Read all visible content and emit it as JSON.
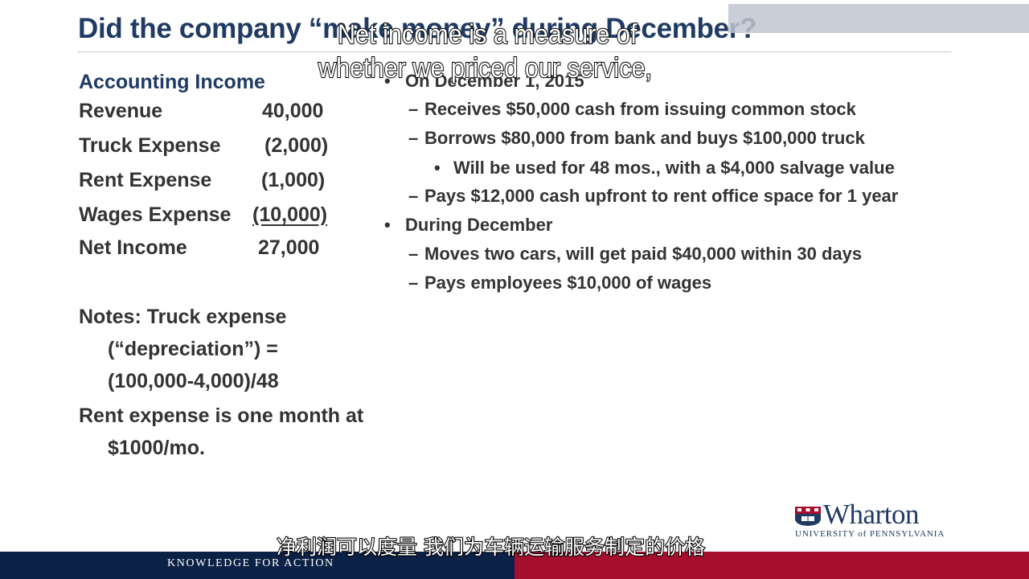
{
  "slide": {
    "title": "Did the company “make money” during December?",
    "accounting": {
      "heading": "Accounting Income",
      "rows": [
        {
          "label": "Revenue",
          "value": "40,000"
        },
        {
          "label": "Truck Expense",
          "value": "(2,000)"
        },
        {
          "label": "Rent Expense",
          "value": "(1,000)"
        },
        {
          "label": "Wages Expense",
          "value": "(10,000)"
        },
        {
          "label": "Net Income",
          "value": "27,000"
        }
      ]
    },
    "notes": [
      "Notes: Truck expense",
      "(“depreciation”) =",
      "(100,000-4,000)/48",
      "Rent expense is one month at",
      "$1000/mo."
    ],
    "bullets": [
      {
        "marker": "•",
        "text": "On December 1, 2015"
      },
      {
        "marker": "–",
        "text": "Receives $50,000 cash from issuing common stock"
      },
      {
        "marker": "–",
        "text": "Borrows $80,000 from bank and buys $100,000 truck"
      },
      {
        "marker": "•",
        "text": "Will be used for 48 mos., with a $4,000 salvage value"
      },
      {
        "marker": "–",
        "text": "Pays $12,000 cash upfront to rent office space for 1 year"
      },
      {
        "marker": "•",
        "text": "During December"
      },
      {
        "marker": "–",
        "text": "Moves two cars, will get paid $40,000 within 30 days"
      },
      {
        "marker": "–",
        "text": "Pays employees $10,000 of wages"
      }
    ]
  },
  "branding": {
    "logo_name": "Wharton",
    "logo_university": "UNIVERSITY of PENNSYLVANIA",
    "footer_tagline": "KNOWLEDGE FOR ACTION",
    "shield_icon": "penn-shield-icon",
    "colors": {
      "navy": "#0b2146",
      "red": "#a50e2c",
      "title": "#1f3a63"
    }
  },
  "subtitles": {
    "english_line1": "Net income is a measure of",
    "english_line2": "whether we priced our service,",
    "chinese": "净利润可以度量 我们为车辆运输服务制定的价格"
  }
}
